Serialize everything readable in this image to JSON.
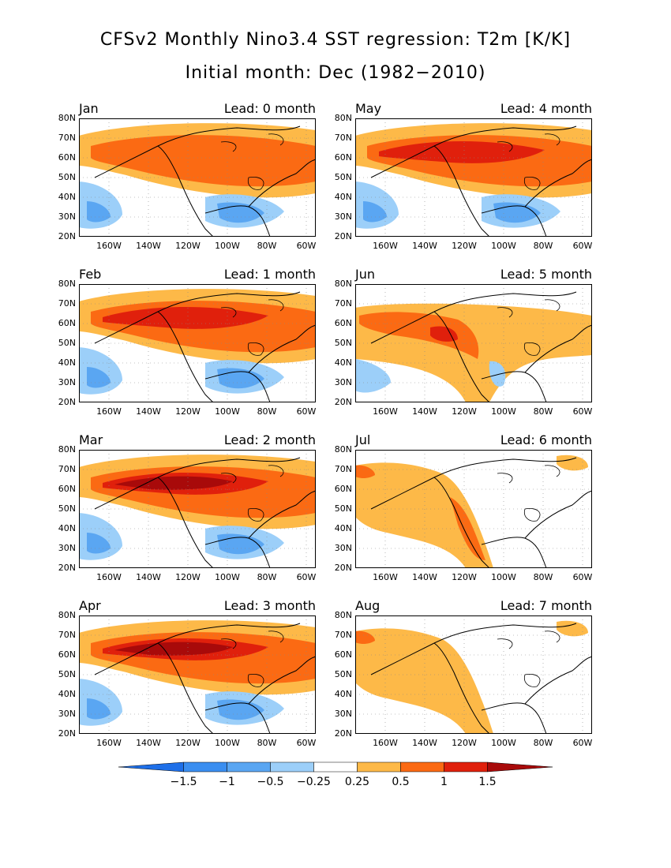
{
  "title": "CFSv2 Monthly Nino3.4 SST regression: T2m [K/K]",
  "subtitle": "Initial month: Dec (1982−2010)",
  "lat_labels": [
    "80N",
    "70N",
    "60N",
    "50N",
    "40N",
    "30N",
    "20N"
  ],
  "lon_labels": [
    "160W",
    "140W",
    "120W",
    "100W",
    "80W",
    "60W"
  ],
  "panels": [
    {
      "month": "Jan",
      "lead": "Lead: 0 month",
      "pattern": "pos",
      "strength": 0.65
    },
    {
      "month": "May",
      "lead": "Lead: 4 month",
      "pattern": "pos",
      "strength": 0.85
    },
    {
      "month": "Feb",
      "lead": "Lead: 1 month",
      "pattern": "pos",
      "strength": 0.75
    },
    {
      "month": "Jun",
      "lead": "Lead: 5 month",
      "pattern": "mid",
      "strength": 0.6
    },
    {
      "month": "Mar",
      "lead": "Lead: 2 month",
      "pattern": "pos",
      "strength": 0.95
    },
    {
      "month": "Jul",
      "lead": "Lead: 6 month",
      "pattern": "weak",
      "strength": 0.35
    },
    {
      "month": "Apr",
      "lead": "Lead: 3 month",
      "pattern": "pos",
      "strength": 0.9
    },
    {
      "month": "Aug",
      "lead": "Lead: 7 month",
      "pattern": "weak",
      "strength": 0.25
    }
  ],
  "colorbar": {
    "labels": [
      "−1.5",
      "−1",
      "−0.5",
      "−0.25",
      "0.25",
      "0.5",
      "1",
      "1.5"
    ],
    "colors": [
      "#1e6fe8",
      "#3a8ef0",
      "#5aa6f2",
      "#9ccff9",
      "#ffffff",
      "#fdb948",
      "#fb6a13",
      "#e0200c",
      "#a80a0a"
    ]
  },
  "colors": {
    "land_line": "#000000",
    "grid": "#888888"
  }
}
